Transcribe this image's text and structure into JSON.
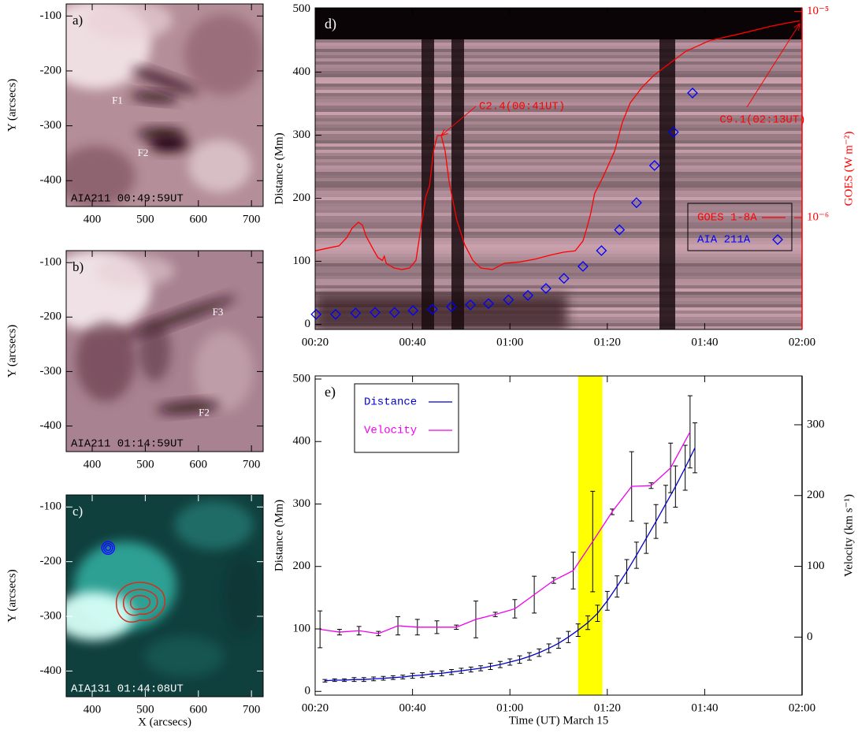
{
  "chart_data": [
    {
      "type": "image",
      "panel_label": "a)",
      "caption": "AIA211 00:49:59UT",
      "features": [
        "F1",
        "F2"
      ],
      "ylabel": "Y (arcsecs)",
      "xlim": [
        351,
        722
      ],
      "ylim": [
        -447,
        -78
      ],
      "xticks": [
        400,
        500,
        600,
        700
      ],
      "yticks": [
        -100,
        -200,
        -300,
        -400
      ],
      "colormap": "aia211"
    },
    {
      "type": "image",
      "panel_label": "b)",
      "caption": "AIA211 01:14:59UT",
      "features": [
        "F3",
        "F2"
      ],
      "ylabel": "Y (arcsecs)",
      "xlim": [
        351,
        722
      ],
      "ylim": [
        -447,
        -78
      ],
      "xticks": [
        400,
        500,
        600,
        700
      ],
      "yticks": [
        -100,
        -200,
        -300,
        -400
      ],
      "colormap": "aia211"
    },
    {
      "type": "image",
      "panel_label": "c)",
      "caption": "AIA131 01:44:08UT",
      "features": [],
      "ylabel": "Y (arcsecs)",
      "xlabel": "X (arcsecs)",
      "xlim": [
        351,
        722
      ],
      "ylim": [
        -447,
        -78
      ],
      "xticks": [
        400,
        500,
        600,
        700
      ],
      "yticks": [
        -100,
        -200,
        -300,
        -400
      ],
      "colormap": "aia131",
      "overlay_contours": true
    },
    {
      "type": "line",
      "panel_label": "d)",
      "ylabel": "Distance (Mm)",
      "y2label": "GOES (W m⁻²)",
      "image_background": true,
      "xlim": [
        20,
        120
      ],
      "ylim": [
        -8,
        502
      ],
      "y2lim": [
        2.87e-07,
        1.04e-05
      ],
      "y2log": true,
      "xticks": [
        {
          "value": 20,
          "label": "00:20"
        },
        {
          "value": 40,
          "label": "00:40"
        },
        {
          "value": 60,
          "label": "01:00"
        },
        {
          "value": 80,
          "label": "01:20"
        },
        {
          "value": 100,
          "label": "01:40"
        },
        {
          "value": 120,
          "label": "02:00"
        }
      ],
      "yticks": [
        0,
        100,
        200,
        300,
        400,
        500
      ],
      "y2ticks": [
        {
          "value": 1e-06,
          "label": "10⁻⁶"
        },
        {
          "value": 1e-05,
          "label": "10⁻⁵"
        }
      ],
      "annotations": [
        "C2.4(00:41UT)",
        "C9.1(02:13UT)"
      ],
      "series": [
        {
          "name": "GOES 1-8A",
          "color": "#ff0000",
          "axis": "y2",
          "x": [
            20.0,
            22.4,
            24.9,
            26.5,
            27.6,
            28.9,
            29.7,
            30.5,
            32.1,
            32.9,
            33.8,
            34.2,
            34.6,
            36.2,
            37.8,
            39.4,
            40.7,
            41.8,
            42.7,
            43.5,
            44.3,
            45.1,
            45.9,
            46.7,
            47.5,
            49.1,
            50.7,
            52.4,
            54.0,
            56.4,
            58.8,
            62.1,
            65.3,
            68.5,
            71.0,
            73.4,
            75.0,
            75.8,
            76.6,
            77.4,
            79.1,
            81.5,
            83.1,
            84.7,
            87.2,
            89.6,
            92.8,
            96.1,
            100.9,
            107.4,
            113.9,
            117.1,
            119.5
          ],
          "values": [
            6.9e-07,
            7.1e-07,
            7.3e-07,
            8e-07,
            8.9e-07,
            9.5e-07,
            9.2e-07,
            8.1e-07,
            6.9e-07,
            6.4e-07,
            6.2e-07,
            6.5e-07,
            6e-07,
            5.7e-07,
            5.6e-07,
            5.7e-07,
            6.2e-07,
            9.2e-07,
            1.26e-06,
            1.43e-06,
            2.1e-06,
            2.5e-06,
            2.5e-06,
            2.1e-06,
            1.5e-06,
            9.7e-07,
            7.4e-07,
            6.2e-07,
            5.7e-07,
            5.6e-07,
            6e-07,
            6.1e-07,
            6.3e-07,
            6.6e-07,
            6.8e-07,
            6.9e-07,
            7.7e-07,
            8.9e-07,
            1.05e-06,
            1.31e-06,
            1.57e-06,
            2.1e-06,
            2.9e-06,
            3.6e-06,
            4.3e-06,
            4.9e-06,
            5.6e-06,
            6.4e-06,
            7.2e-06,
            7.8e-06,
            8.5e-06,
            8.8e-06,
            9e-06
          ]
        },
        {
          "name": "AIA 211A",
          "color": "#0000ff",
          "marker": "diamond",
          "x": [
            20.2,
            24.2,
            28.3,
            32.3,
            36.3,
            40.1,
            44.1,
            48.0,
            51.9,
            55.6,
            59.7,
            63.7,
            67.4,
            71.1,
            75.0,
            78.8,
            82.5,
            86.0,
            89.7,
            93.6,
            97.5
          ],
          "values": [
            16,
            16,
            18,
            19,
            19,
            22,
            24,
            28,
            31,
            33,
            39,
            46,
            57,
            73,
            92,
            117,
            150,
            193,
            252,
            305,
            367
          ]
        }
      ]
    },
    {
      "type": "line",
      "panel_label": "e)",
      "ylabel": "Distance (Mm)",
      "y2label": "Velocity (km s⁻¹)",
      "xlabel": "Time (UT) March 15",
      "xlim": [
        20,
        120
      ],
      "ylim": [
        -6,
        505
      ],
      "y2lim": [
        -82,
        369
      ],
      "xticks": [
        {
          "value": 20,
          "label": "00:20"
        },
        {
          "value": 40,
          "label": "00:40"
        },
        {
          "value": 60,
          "label": "01:00"
        },
        {
          "value": 80,
          "label": "01:20"
        },
        {
          "value": 100,
          "label": "01:40"
        },
        {
          "value": 120,
          "label": "02:00"
        }
      ],
      "yticks": [
        0,
        100,
        200,
        300,
        400,
        500
      ],
      "y2ticks": [
        0,
        100,
        200,
        300
      ],
      "highlight_span": [
        74,
        79
      ],
      "highlight_color": "#ffff00",
      "series": [
        {
          "name": "Distance",
          "color": "#0000cc",
          "x": [
            22,
            24,
            26,
            28,
            30,
            32,
            34,
            36,
            38,
            40,
            42,
            44,
            46,
            48,
            50,
            52,
            54,
            56,
            58,
            60,
            62,
            64,
            66,
            68,
            70,
            72,
            74,
            76,
            78,
            80,
            82,
            84,
            86,
            88,
            90,
            92,
            94,
            96,
            98
          ],
          "values": [
            17,
            18,
            18,
            19,
            19,
            20,
            21,
            22,
            23,
            25,
            26,
            28,
            29,
            31,
            33,
            35,
            37,
            40,
            43,
            47,
            51,
            56,
            62,
            69,
            77,
            87,
            98,
            110,
            125,
            145,
            168,
            192,
            218,
            245,
            272,
            300,
            328,
            358,
            390
          ],
          "errors": [
            2,
            2,
            2,
            3,
            3,
            3,
            3,
            3,
            3,
            4,
            4,
            4,
            4,
            4,
            4,
            4,
            4,
            5,
            5,
            5,
            6,
            6,
            6,
            7,
            8,
            9,
            10,
            11,
            13,
            15,
            17,
            19,
            21,
            24,
            27,
            30,
            33,
            36,
            40
          ]
        },
        {
          "name": "Velocity",
          "color": "#ee00ee",
          "axis": "y2",
          "x": [
            21,
            25,
            29,
            33,
            37,
            41,
            45,
            49,
            53,
            57,
            61,
            65,
            69,
            73,
            77,
            81,
            85,
            89,
            93,
            97
          ],
          "values": [
            11,
            7,
            9,
            5,
            16,
            14,
            14,
            14,
            25,
            32,
            40,
            60,
            80,
            94,
            135,
            177,
            213,
            214,
            239,
            290
          ],
          "errors": [
            26,
            4,
            6,
            3,
            13,
            11,
            9,
            3,
            26,
            3,
            13,
            26,
            4,
            26,
            71,
            4,
            49,
            4,
            35,
            51
          ]
        }
      ]
    }
  ]
}
